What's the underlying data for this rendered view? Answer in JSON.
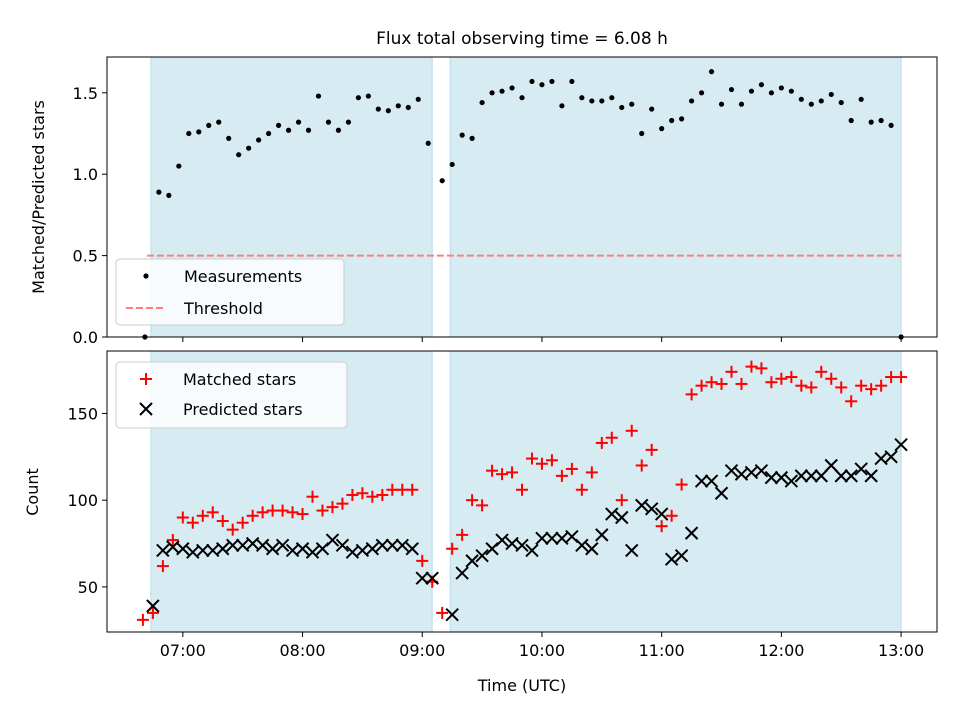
{
  "title": "Flux total observing time = 6.08 h",
  "chart_data": [
    {
      "type": "scatter",
      "panel": "top",
      "ylabel": "Matched/Predicted stars",
      "ylim": [
        0,
        1.72
      ],
      "yticks": [
        0.0,
        0.5,
        1.0,
        1.5
      ],
      "ytick_labels": [
        "0.0",
        "0.5",
        "1.0",
        "1.5"
      ],
      "legend_position": "lower-left",
      "threshold": 0.5,
      "threshold_range": [
        "06:42",
        "13:00"
      ],
      "shaded_intervals": [
        [
          "06:44",
          "09:05"
        ],
        [
          "09:14",
          "13:00"
        ]
      ],
      "series": [
        {
          "name": "Measurements",
          "x": [
            "06:41",
            "06:48",
            "06:53",
            "06:58",
            "07:03",
            "07:08",
            "07:13",
            "07:18",
            "07:23",
            "07:28",
            "07:33",
            "07:38",
            "07:43",
            "07:48",
            "07:53",
            "07:58",
            "08:03",
            "08:08",
            "08:13",
            "08:18",
            "08:23",
            "08:28",
            "08:33",
            "08:38",
            "08:43",
            "08:48",
            "08:53",
            "08:58",
            "09:03",
            "09:10",
            "09:15",
            "09:20",
            "09:25",
            "09:30",
            "09:35",
            "09:40",
            "09:45",
            "09:50",
            "09:55",
            "10:00",
            "10:05",
            "10:10",
            "10:15",
            "10:20",
            "10:25",
            "10:30",
            "10:35",
            "10:40",
            "10:45",
            "10:50",
            "10:55",
            "11:00",
            "11:05",
            "11:10",
            "11:15",
            "11:20",
            "11:25",
            "11:30",
            "11:35",
            "11:40",
            "11:45",
            "11:50",
            "11:55",
            "12:00",
            "12:05",
            "12:10",
            "12:15",
            "12:20",
            "12:25",
            "12:30",
            "12:35",
            "12:40",
            "12:45",
            "12:50",
            "12:55",
            "13:00"
          ],
          "y": [
            0.0,
            0.89,
            0.87,
            1.05,
            1.25,
            1.26,
            1.3,
            1.32,
            1.22,
            1.12,
            1.16,
            1.21,
            1.25,
            1.3,
            1.27,
            1.32,
            1.27,
            1.48,
            1.32,
            1.27,
            1.32,
            1.47,
            1.48,
            1.4,
            1.39,
            1.42,
            1.41,
            1.46,
            1.19,
            0.96,
            1.06,
            1.24,
            1.22,
            1.44,
            1.5,
            1.51,
            1.53,
            1.47,
            1.57,
            1.55,
            1.57,
            1.42,
            1.57,
            1.47,
            1.45,
            1.45,
            1.47,
            1.41,
            1.43,
            1.25,
            1.4,
            1.28,
            1.33,
            1.34,
            1.45,
            1.5,
            1.63,
            1.43,
            1.52,
            1.43,
            1.51,
            1.55,
            1.5,
            1.53,
            1.51,
            1.46,
            1.43,
            1.45,
            1.49,
            1.44,
            1.33,
            1.46,
            1.32,
            1.33,
            1.3,
            0.0
          ],
          "marker": "dot",
          "color": "#000000"
        },
        {
          "name": "Threshold",
          "style": "dashed",
          "color": "#ff7f7f"
        }
      ]
    },
    {
      "type": "scatter",
      "panel": "bottom",
      "xlabel": "Time (UTC)",
      "ylabel": "Count",
      "ylim": [
        24,
        186
      ],
      "yticks": [
        50,
        100,
        150
      ],
      "ytick_labels": [
        "50",
        "100",
        "150"
      ],
      "xlim": [
        "06:22",
        "13:18"
      ],
      "xticks": [
        "07:00",
        "08:00",
        "09:00",
        "10:00",
        "11:00",
        "12:00",
        "13:00"
      ],
      "legend_position": "upper-left",
      "shaded_intervals": [
        [
          "06:44",
          "09:05"
        ],
        [
          "09:14",
          "13:00"
        ]
      ],
      "series": [
        {
          "name": "Matched stars",
          "marker": "plus",
          "color": "#ff0000",
          "x": [
            "06:40",
            "06:45",
            "06:50",
            "06:55",
            "07:00",
            "07:05",
            "07:10",
            "07:15",
            "07:20",
            "07:25",
            "07:30",
            "07:35",
            "07:40",
            "07:45",
            "07:50",
            "07:55",
            "08:00",
            "08:05",
            "08:10",
            "08:15",
            "08:20",
            "08:25",
            "08:30",
            "08:35",
            "08:40",
            "08:45",
            "08:50",
            "08:55",
            "09:00",
            "09:05",
            "09:10",
            "09:15",
            "09:20",
            "09:25",
            "09:30",
            "09:35",
            "09:40",
            "09:45",
            "09:50",
            "09:55",
            "10:00",
            "10:05",
            "10:10",
            "10:15",
            "10:20",
            "10:25",
            "10:30",
            "10:35",
            "10:40",
            "10:45",
            "10:50",
            "10:55",
            "11:00",
            "11:05",
            "11:10",
            "11:15",
            "11:20",
            "11:25",
            "11:30",
            "11:35",
            "11:40",
            "11:45",
            "11:50",
            "11:55",
            "12:00",
            "12:05",
            "12:10",
            "12:15",
            "12:20",
            "12:25",
            "12:30",
            "12:35",
            "12:40",
            "12:45",
            "12:50",
            "12:55",
            "13:00"
          ],
          "y": [
            31,
            35,
            62,
            77,
            90,
            87,
            91,
            93,
            88,
            83,
            87,
            91,
            93,
            94,
            94,
            93,
            92,
            102,
            94,
            96,
            98,
            103,
            104,
            102,
            103,
            106,
            106,
            106,
            65,
            53,
            35,
            72,
            80,
            100,
            97,
            117,
            115,
            116,
            106,
            124,
            121,
            123,
            114,
            118,
            106,
            116,
            133,
            136,
            100,
            140,
            120,
            129,
            85,
            91,
            109,
            161,
            166,
            168,
            167,
            174,
            167,
            177,
            176,
            168,
            170,
            171,
            166,
            165,
            174,
            170,
            165,
            157,
            166,
            164,
            166,
            171,
            171
          ]
        },
        {
          "name": "Predicted stars",
          "marker": "x",
          "color": "#000000",
          "x": [
            "06:45",
            "06:50",
            "06:55",
            "07:00",
            "07:05",
            "07:10",
            "07:15",
            "07:20",
            "07:25",
            "07:30",
            "07:35",
            "07:40",
            "07:45",
            "07:50",
            "07:55",
            "08:00",
            "08:05",
            "08:10",
            "08:15",
            "08:20",
            "08:25",
            "08:30",
            "08:35",
            "08:40",
            "08:45",
            "08:50",
            "08:55",
            "09:00",
            "09:05",
            "09:15",
            "09:20",
            "09:25",
            "09:30",
            "09:35",
            "09:40",
            "09:45",
            "09:50",
            "09:55",
            "10:00",
            "10:05",
            "10:10",
            "10:15",
            "10:20",
            "10:25",
            "10:30",
            "10:35",
            "10:40",
            "10:45",
            "10:50",
            "10:55",
            "11:00",
            "11:05",
            "11:10",
            "11:15",
            "11:20",
            "11:25",
            "11:30",
            "11:35",
            "11:40",
            "11:45",
            "11:50",
            "11:55",
            "12:00",
            "12:05",
            "12:10",
            "12:15",
            "12:20",
            "12:25",
            "12:30",
            "12:35",
            "12:40",
            "12:45",
            "12:50",
            "12:55",
            "13:00"
          ],
          "y": [
            39,
            71,
            73,
            72,
            70,
            71,
            71,
            72,
            74,
            74,
            75,
            74,
            72,
            74,
            71,
            72,
            70,
            72,
            77,
            74,
            70,
            71,
            72,
            74,
            74,
            74,
            72,
            55,
            55,
            34,
            58,
            65,
            68,
            72,
            77,
            75,
            74,
            71,
            78,
            78,
            78,
            79,
            74,
            72,
            80,
            92,
            90,
            71,
            97,
            95,
            92,
            66,
            68,
            81,
            111,
            111,
            104,
            117,
            115,
            116,
            117,
            113,
            113,
            111,
            114,
            114,
            114,
            120,
            114,
            114,
            118,
            114,
            124,
            125,
            132
          ]
        }
      ]
    }
  ]
}
